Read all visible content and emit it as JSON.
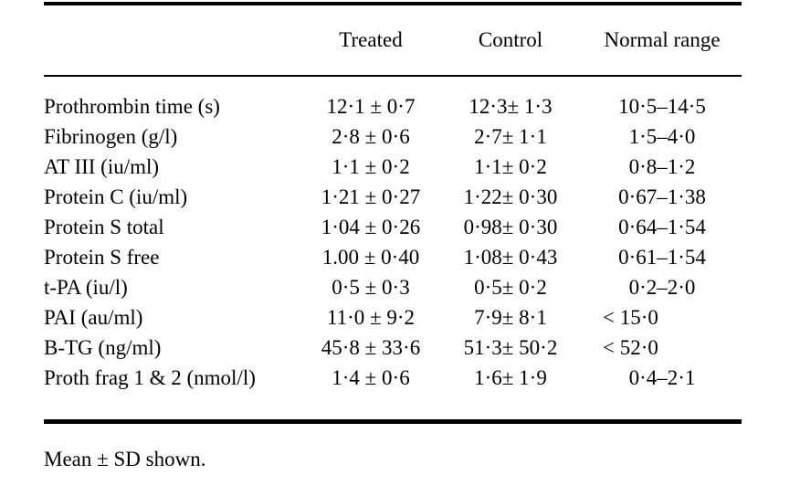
{
  "table": {
    "headers": [
      "Treated",
      "Control",
      "Normal range"
    ],
    "rows": [
      {
        "label": "Prothrombin time (s)",
        "treated": "12·1 ± 0·7",
        "control": "12·3± 1·3",
        "normal_range": "10·5–14·5"
      },
      {
        "label": "Fibrinogen (g/l)",
        "treated": "2·8 ± 0·6",
        "control": "2·7± 1·1",
        "normal_range": "1·5–4·0"
      },
      {
        "label": "AT III (iu/ml)",
        "treated": "1·1 ± 0·2",
        "control": "1·1± 0·2",
        "normal_range": "0·8–1·2"
      },
      {
        "label": "Protein C (iu/ml)",
        "treated": "1·21 ± 0·27",
        "control": "1·22± 0·30",
        "normal_range": "0·67–1·38"
      },
      {
        "label": "Protein S total",
        "treated": "1·04 ± 0·26",
        "control": "0·98± 0·30",
        "normal_range": "0·64–1·54"
      },
      {
        "label": "Protein S free",
        "treated": "1.00 ± 0·40",
        "control": "1·08± 0·43",
        "normal_range": "0·61–1·54"
      },
      {
        "label": "t-PA (iu/l)",
        "treated": "0·5 ± 0·3",
        "control": "0·5± 0·2",
        "normal_range": "0·2–2·0"
      },
      {
        "label": "PAI (au/ml)",
        "treated": "11·0 ± 9·2",
        "control": "7·9± 8·1",
        "normal_range": "< 15·0"
      },
      {
        "label": "B-TG (ng/ml)",
        "treated": "45·8 ± 33·6",
        "control": "51·3± 50·2",
        "normal_range": "< 52·0"
      },
      {
        "label": "Proth frag 1 & 2 (nmol/l)",
        "treated": "1·4 ± 0·6",
        "control": "1·6± 1·9",
        "normal_range": "0·4–2·1"
      }
    ],
    "footnote": "Mean ± SD shown."
  },
  "colors": {
    "text": "#000000",
    "background": "#ffffff",
    "rule": "#000000"
  }
}
